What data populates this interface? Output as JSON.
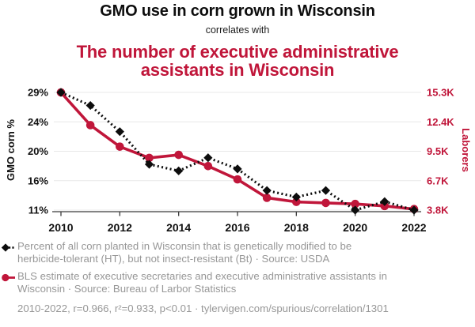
{
  "header": {
    "title_black": "GMO use in corn grown in Wisconsin",
    "connector": "correlates with",
    "title_red_line1": "The number of executive administrative",
    "title_red_line2": "assistants in Wisconsin"
  },
  "colors": {
    "accent_red": "#c0163a",
    "legend_gray": "#979797",
    "gridline": "#e8e8e8",
    "axis": "#3a3a3a",
    "series_black": "#0d0d0d"
  },
  "chart_data": {
    "type": "line",
    "x": [
      2010,
      2011,
      2012,
      2013,
      2014,
      2015,
      2016,
      2017,
      2018,
      2019,
      2020,
      2021,
      2022
    ],
    "x_ticks": [
      "2010",
      "2012",
      "2014",
      "2016",
      "2018",
      "2020",
      "2022"
    ],
    "left_axis": {
      "label": "GMO corn %",
      "ticks": [
        "29%",
        "24%",
        "20%",
        "16%",
        "11%"
      ],
      "range": [
        29,
        11
      ]
    },
    "right_axis": {
      "label": "Laborers",
      "ticks": [
        "15.3K",
        "12.4K",
        "9.5K",
        "6.7K",
        "3.8K"
      ],
      "range": [
        15.3,
        3.8
      ]
    },
    "series": [
      {
        "id": "gmo-corn",
        "name": "GMO corn % (HT only, Wisconsin)",
        "axis": "left",
        "color": "#0d0d0d",
        "style": "dotted",
        "marker": "diamond",
        "values": [
          29,
          27,
          23,
          18,
          17,
          19,
          17.3,
          14,
          13,
          14,
          11,
          12.3,
          11
        ]
      },
      {
        "id": "laborers",
        "name": "Executive administrative assistants in Wisconsin (thousands)",
        "axis": "right",
        "color": "#c0163a",
        "style": "solid",
        "marker": "circle",
        "values": [
          15.3,
          12.1,
          10.0,
          8.9,
          9.2,
          8.1,
          6.8,
          5.0,
          4.6,
          4.5,
          4.4,
          4.2,
          3.9
        ]
      }
    ],
    "grid": "horizontal",
    "legend_position": "below"
  },
  "legend": {
    "items": [
      {
        "marker": "black-diamond-dashed",
        "lines": [
          "Percent of all corn planted in Wisconsin that is genetically modified to be",
          "herbicide-tolerant (HT), but not insect-resistant (Bt) · Source: USDA"
        ]
      },
      {
        "marker": "red-circle-solid",
        "lines": [
          "BLS estimate of executive secretaries and executive administrative assistants in",
          "Wisconsin · Source: Bureau of Larbor Statistics"
        ]
      }
    ],
    "footer": "2010-2022, r=0.966, r²=0.933, p<0.01 · tylervigen.com/spurious/correlation/1301"
  }
}
